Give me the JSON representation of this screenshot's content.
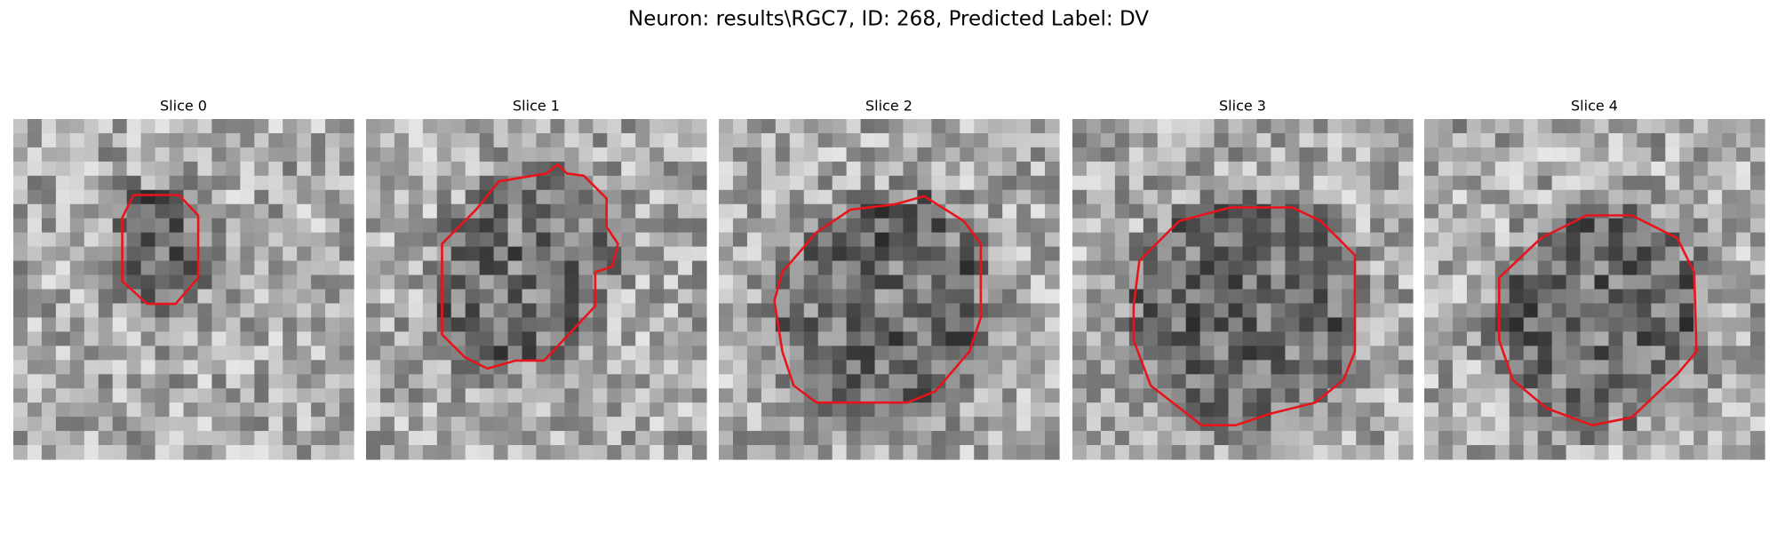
{
  "title": "Neuron: results\\RGC7, ID: 268, Predicted Label: DV",
  "panels": [
    {
      "title": "Slice 0"
    },
    {
      "title": "Slice 1"
    },
    {
      "title": "Slice 2"
    },
    {
      "title": "Slice 3"
    },
    {
      "title": "Slice 4"
    }
  ]
}
